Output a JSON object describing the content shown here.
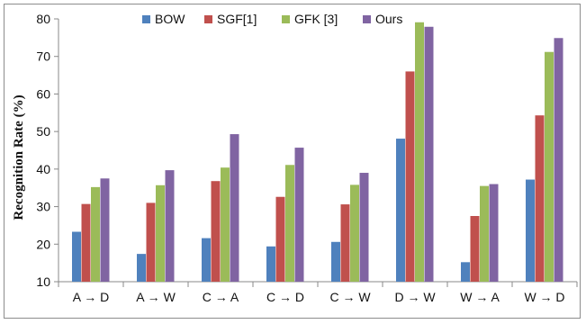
{
  "chart_data": {
    "type": "bar",
    "title": "",
    "xlabel": "",
    "ylabel": "Recognition Rate (%)",
    "ylim": [
      10,
      80
    ],
    "yticks": [
      10,
      20,
      30,
      40,
      50,
      60,
      70,
      80
    ],
    "grid": false,
    "legend": "top",
    "categories": [
      "A → D",
      "A → W",
      "C → A",
      "C → D",
      "C → W",
      "D → W",
      "W → A",
      "W → D"
    ],
    "series": [
      {
        "name": "BOW",
        "color": "#4f81bd",
        "values": [
          23.3,
          17.4,
          21.6,
          19.4,
          20.6,
          48.1,
          15.2,
          37.2
        ]
      },
      {
        "name": "SGF[1]",
        "color": "#c0504d",
        "values": [
          30.7,
          31.0,
          36.8,
          32.6,
          30.6,
          66.0,
          27.5,
          54.3
        ]
      },
      {
        "name": "GFK [3]",
        "color": "#9bbb59",
        "values": [
          35.2,
          35.7,
          40.4,
          41.1,
          35.8,
          79.1,
          35.5,
          71.2
        ]
      },
      {
        "name": "Ours",
        "color": "#8064a2",
        "values": [
          37.5,
          39.7,
          49.3,
          45.7,
          39.0,
          77.9,
          36.0,
          74.9
        ]
      }
    ]
  }
}
